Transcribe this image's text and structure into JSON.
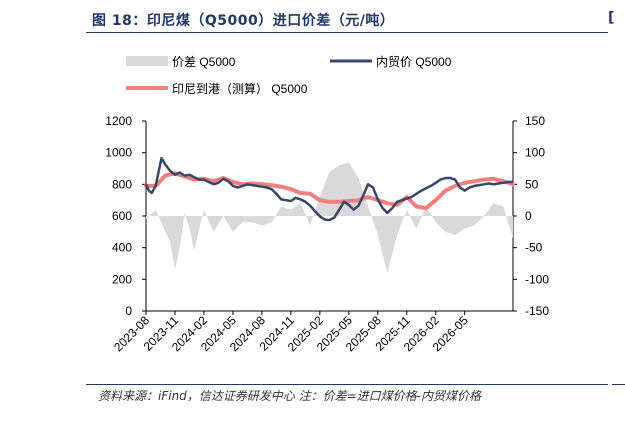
{
  "figure": {
    "title": "图 18：印尼煤（Q5000）进口价差（元/吨）",
    "source": "资料来源：iFind，信达证券研发中心 注：价差=进口煤价格-内贸煤价格"
  },
  "colors": {
    "diff": "#d9d9d9",
    "domestic": "#3a4668",
    "import": "#f08080",
    "title": "#1f3864"
  },
  "chart_data": {
    "type": "line",
    "legend": {
      "placement": "top-left",
      "items": [
        "价差 Q5000",
        "内贸价 Q5000",
        "印尼到港（测算） Q5000"
      ]
    },
    "x_ticks": [
      "2023-08",
      "2023-11",
      "2024-02",
      "2024-05",
      "2024-08",
      "2024-11",
      "2025-02",
      "2025-05",
      "2025-08",
      "2025-11",
      "2026-02",
      "2026-05"
    ],
    "y_left": {
      "min": 0,
      "max": 1200,
      "ticks": [
        0,
        200,
        400,
        600,
        800,
        1000,
        1200
      ]
    },
    "y_right": {
      "min": -150,
      "max": 150,
      "ticks": [
        -150,
        -100,
        -50,
        0,
        50,
        100,
        150
      ]
    },
    "series": [
      {
        "name": "内贸价 Q5000",
        "type": "line",
        "axis": "left",
        "x": [
          0,
          0.3,
          0.6,
          1,
          1.3,
          1.6,
          2,
          2.5,
          3,
          3.5,
          4,
          4.5,
          5,
          5.5,
          6,
          6.5,
          7,
          7.5,
          8,
          8.5,
          9,
          9.5,
          10,
          10.5,
          11,
          11.5,
          12,
          12.5,
          13,
          13.5,
          14,
          14.5,
          15,
          15.5,
          16,
          16.5,
          17,
          17.5,
          18,
          18.5,
          19,
          19.5,
          20,
          20.5,
          21,
          21.5,
          22,
          22.5,
          23,
          23.5,
          24,
          24.5,
          25,
          25.5,
          26,
          26.5,
          27,
          27.5,
          28,
          28.5,
          29,
          29.5,
          30,
          30.5,
          31,
          31.5,
          32,
          32.5,
          33,
          33.5,
          34,
          34.5,
          35,
          35.5,
          36,
          36.5,
          37,
          37.5,
          38
        ],
        "y": [
          800,
          760,
          745,
          790,
          880,
          965,
          925,
          885,
          860,
          875,
          855,
          860,
          845,
          830,
          830,
          815,
          800,
          810,
          835,
          820,
          790,
          780,
          790,
          800,
          795,
          790,
          785,
          780,
          770,
          740,
          705,
          700,
          695,
          715,
          705,
          690,
          665,
          630,
          598,
          578,
          575,
          590,
          640,
          690,
          670,
          640,
          665,
          730,
          800,
          780,
          705,
          650,
          620,
          650,
          690,
          700,
          710,
          720,
          740,
          760,
          775,
          790,
          810,
          830,
          840,
          840,
          830,
          780,
          760,
          780,
          790,
          795,
          800,
          805,
          800,
          805,
          810,
          815,
          815
        ],
        "note": "x in month index from 2023-08"
      },
      {
        "name": "印尼到港（测算） Q5000",
        "type": "line",
        "axis": "left",
        "x": [
          0,
          1,
          2,
          3,
          4,
          5,
          6,
          7,
          8,
          9,
          10,
          11,
          12,
          13,
          14,
          15,
          16,
          17,
          18,
          19,
          20,
          21,
          22,
          23,
          24,
          25,
          26,
          27,
          28,
          29,
          30,
          31,
          32,
          33,
          34,
          35,
          36,
          37,
          38
        ],
        "y": [
          790,
          790,
          855,
          870,
          850,
          830,
          835,
          820,
          840,
          815,
          800,
          805,
          800,
          795,
          785,
          770,
          745,
          740,
          700,
          690,
          690,
          695,
          700,
          720,
          700,
          680,
          670,
          720,
          660,
          650,
          700,
          760,
          790,
          810,
          820,
          830,
          835,
          820,
          800
        ]
      },
      {
        "name": "价差 Q5000",
        "type": "area",
        "axis": "right",
        "x": [
          0,
          1,
          2,
          2.5,
          3,
          3.5,
          4,
          4.5,
          5,
          5.5,
          6,
          7,
          8,
          9,
          10,
          11,
          12,
          13,
          14,
          15,
          16,
          17,
          18,
          19,
          20,
          21,
          22,
          23,
          24,
          25,
          26,
          27,
          28,
          29,
          30,
          31,
          32,
          33,
          34,
          35,
          36,
          37,
          38
        ],
        "y": [
          -5,
          10,
          -25,
          -40,
          -85,
          -50,
          5,
          -20,
          -55,
          -20,
          10,
          -25,
          0,
          -25,
          -10,
          -10,
          -15,
          -10,
          15,
          10,
          20,
          -15,
          30,
          70,
          80,
          85,
          60,
          15,
          -30,
          -90,
          -30,
          10,
          -20,
          15,
          -10,
          -25,
          -30,
          -20,
          -15,
          0,
          20,
          15,
          -35
        ]
      }
    ]
  }
}
